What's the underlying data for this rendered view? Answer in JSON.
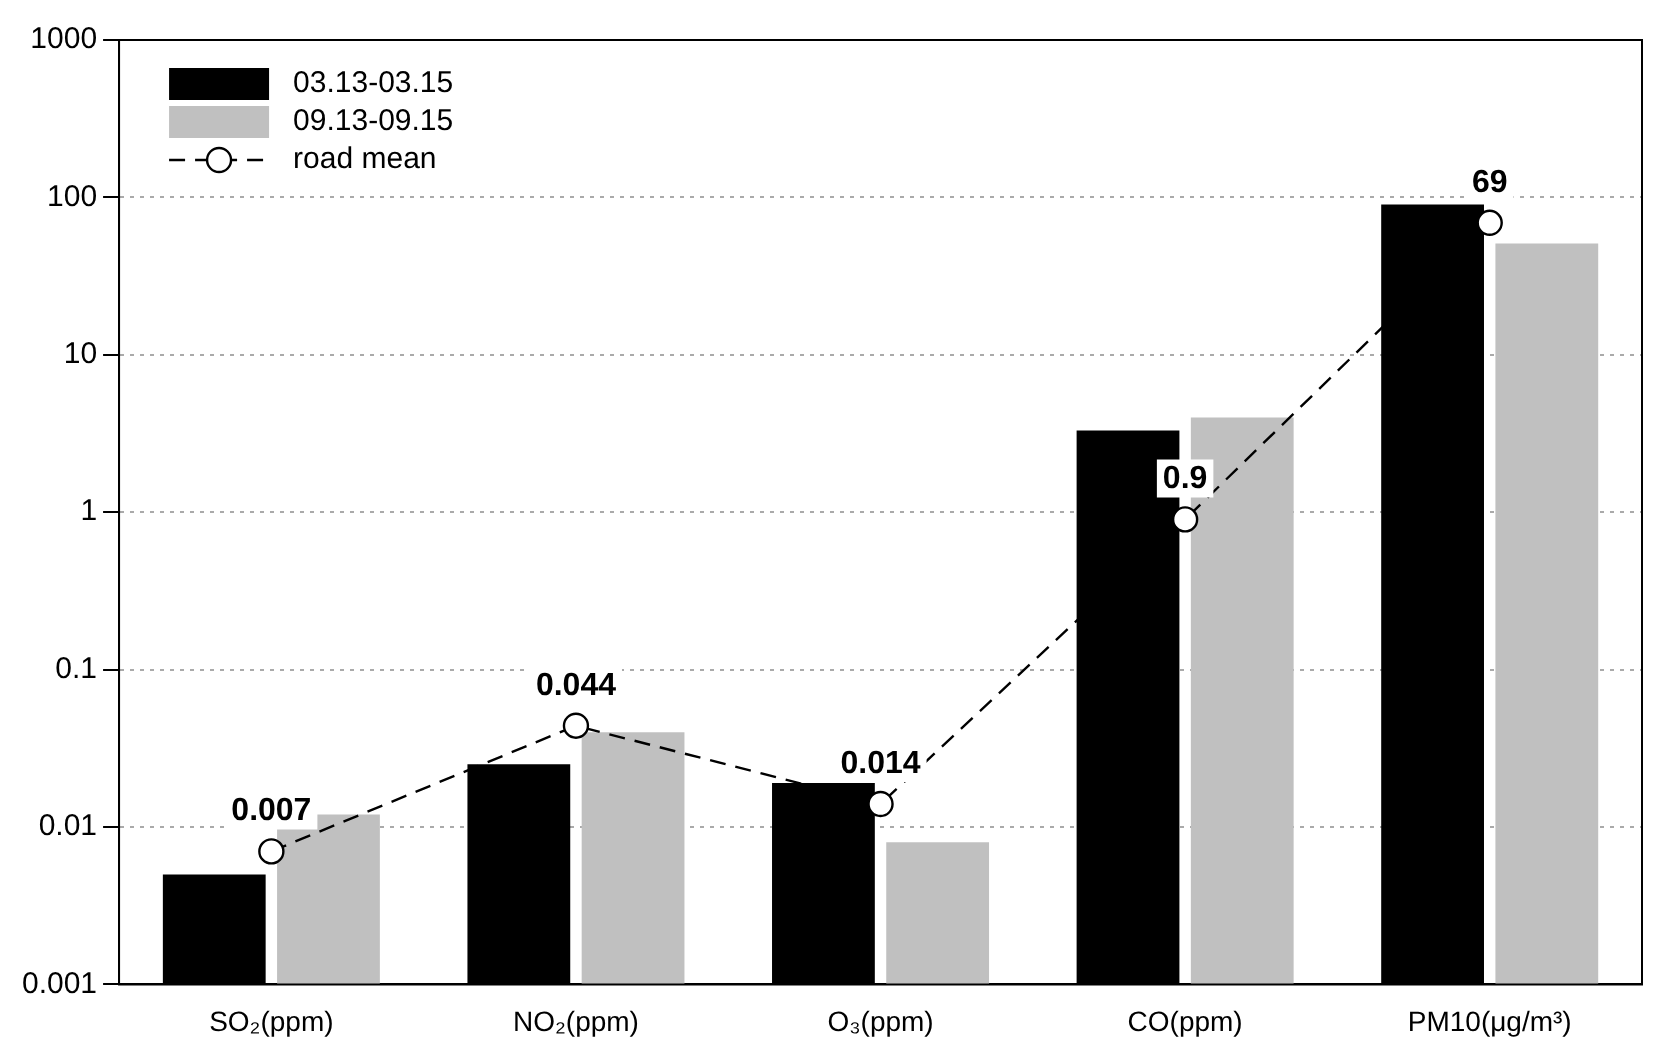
{
  "chart_data": {
    "type": "bar",
    "categories": [
      "SO₂(ppm)",
      "NO₂(ppm)",
      "O₃(ppm)",
      "CO(ppm)",
      "PM10(μg/m³)"
    ],
    "series": [
      {
        "name": "03.13-03.15",
        "color": "#000000",
        "values": [
          0.005,
          0.025,
          0.019,
          3.3,
          90
        ]
      },
      {
        "name": "09.13-09.15",
        "color": "#c0c0c0",
        "values": [
          0.012,
          0.04,
          0.008,
          4,
          51
        ]
      },
      {
        "name": "road mean",
        "type": "line",
        "color": "#000000",
        "marker": "circle",
        "line_style": "dashed",
        "values": [
          0.007,
          0.044,
          0.014,
          0.9,
          69
        ],
        "value_labels": [
          "0.007",
          "0.044",
          "0.014",
          "0.9",
          "69"
        ]
      }
    ],
    "log": "y",
    "ylim": [
      0.001,
      1000
    ],
    "yticks": [
      0.001,
      0.01,
      0.1,
      1,
      10,
      100,
      1000
    ],
    "grid": "y",
    "legend": "top left"
  }
}
